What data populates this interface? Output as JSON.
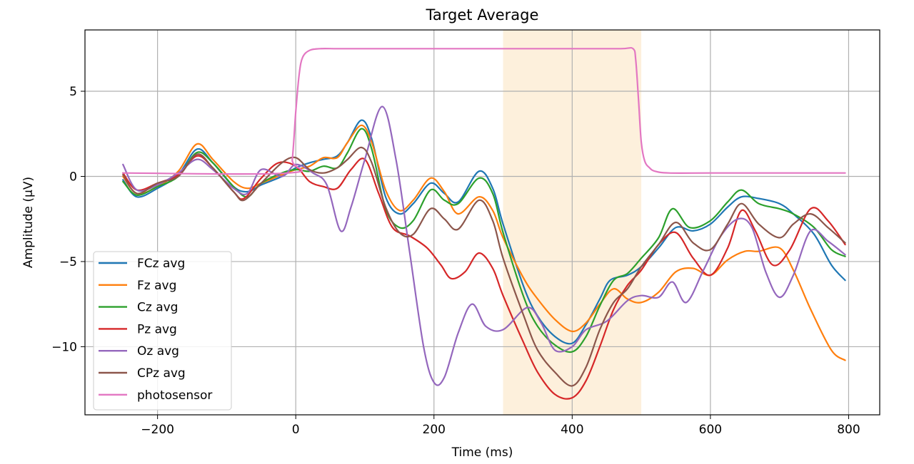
{
  "chart_data": {
    "type": "line",
    "title": "Target Average",
    "xlabel": "Time (ms)",
    "ylabel": "Amplitude (μV)",
    "xlim": [
      -305,
      845
    ],
    "ylim": [
      -14,
      8.6
    ],
    "xticks": [
      -200,
      0,
      200,
      400,
      600,
      800
    ],
    "xtick_labels": [
      "−200",
      "0",
      "200",
      "400",
      "600",
      "800"
    ],
    "yticks": [
      -10,
      -5,
      0,
      5
    ],
    "ytick_labels": [
      "−10",
      "−5",
      "0",
      "5"
    ],
    "grid": true,
    "legend_position": "lower-left",
    "highlight_span": {
      "x_start": 300,
      "x_end": 500,
      "color": "#fdf0dc"
    },
    "series": [
      {
        "name": "FCz avg",
        "color": "#1f77b4",
        "x": [
          -250,
          -230,
          -200,
          -170,
          -143,
          -120,
          -90,
          -70,
          -50,
          -20,
          0,
          20,
          40,
          60,
          75,
          95,
          110,
          130,
          150,
          170,
          195,
          215,
          235,
          265,
          285,
          300,
          330,
          350,
          375,
          400,
          420,
          440,
          455,
          480,
          500,
          525,
          550,
          575,
          600,
          625,
          645,
          670,
          700,
          720,
          750,
          775,
          795
        ],
        "y": [
          -0.2,
          -1.2,
          -0.7,
          0.1,
          1.6,
          0.8,
          -0.6,
          -0.9,
          -0.5,
          0,
          0.5,
          0.8,
          1.0,
          1.2,
          2.0,
          3.3,
          2.2,
          -1.2,
          -2.2,
          -1.6,
          -0.4,
          -1.0,
          -1.5,
          0.3,
          -0.7,
          -2.8,
          -6.5,
          -8.2,
          -9.4,
          -9.8,
          -8.7,
          -7.2,
          -6.1,
          -5.8,
          -5.3,
          -4.2,
          -3.0,
          -3.2,
          -2.8,
          -1.8,
          -1.2,
          -1.3,
          -1.6,
          -2.2,
          -3.4,
          -5.2,
          -6.1
        ]
      },
      {
        "name": "Fz avg",
        "color": "#ff7f0e",
        "x": [
          -250,
          -230,
          -200,
          -170,
          -143,
          -120,
          -90,
          -70,
          -50,
          -20,
          0,
          20,
          40,
          60,
          75,
          95,
          110,
          130,
          150,
          170,
          195,
          215,
          235,
          265,
          285,
          300,
          330,
          350,
          375,
          400,
          420,
          440,
          460,
          480,
          500,
          525,
          550,
          575,
          600,
          625,
          650,
          670,
          700,
          720,
          745,
          775,
          795
        ],
        "y": [
          0.0,
          -1.0,
          -0.6,
          0.3,
          1.9,
          1.0,
          -0.3,
          -0.7,
          -0.4,
          0.1,
          0.4,
          0.6,
          1.1,
          1.1,
          2.0,
          3.0,
          2.0,
          -0.8,
          -2.0,
          -1.4,
          -0.1,
          -0.9,
          -2.2,
          -1.2,
          -2.0,
          -3.6,
          -6.0,
          -7.2,
          -8.4,
          -9.1,
          -8.6,
          -7.5,
          -6.6,
          -7.2,
          -7.4,
          -6.8,
          -5.6,
          -5.4,
          -5.8,
          -4.9,
          -4.4,
          -4.4,
          -4.2,
          -5.5,
          -7.8,
          -10.2,
          -10.8
        ]
      },
      {
        "name": "Cz avg",
        "color": "#2ca02c",
        "x": [
          -250,
          -230,
          -200,
          -170,
          -143,
          -120,
          -90,
          -70,
          -50,
          -20,
          0,
          20,
          40,
          60,
          75,
          95,
          110,
          130,
          150,
          170,
          195,
          215,
          235,
          265,
          285,
          300,
          330,
          350,
          375,
          400,
          420,
          440,
          460,
          480,
          500,
          525,
          545,
          570,
          600,
          625,
          645,
          670,
          700,
          720,
          750,
          775,
          795
        ],
        "y": [
          -0.3,
          -1.1,
          -0.6,
          0,
          1.4,
          0.8,
          -0.6,
          -1.2,
          -0.4,
          0.2,
          0.4,
          0.3,
          0.6,
          0.5,
          1.4,
          2.8,
          1.6,
          -1.9,
          -3.0,
          -2.6,
          -0.8,
          -1.4,
          -1.6,
          -0.1,
          -1.0,
          -3.3,
          -7.1,
          -8.8,
          -9.9,
          -10.3,
          -9.4,
          -7.6,
          -6.1,
          -5.7,
          -4.8,
          -3.6,
          -1.9,
          -3.0,
          -2.6,
          -1.5,
          -0.8,
          -1.6,
          -1.9,
          -2.2,
          -3.0,
          -4.3,
          -4.7
        ]
      },
      {
        "name": "Pz avg",
        "color": "#d62728",
        "x": [
          -250,
          -230,
          -200,
          -170,
          -143,
          -120,
          -90,
          -75,
          -50,
          -25,
          0,
          20,
          40,
          60,
          80,
          100,
          120,
          140,
          165,
          190,
          210,
          225,
          245,
          265,
          285,
          300,
          330,
          350,
          375,
          400,
          420,
          440,
          460,
          480,
          500,
          525,
          550,
          575,
          600,
          625,
          645,
          665,
          690,
          715,
          745,
          770,
          795
        ],
        "y": [
          0.2,
          -0.8,
          -0.4,
          0.1,
          1.2,
          0.5,
          -0.9,
          -1.3,
          -0.1,
          0.8,
          0.6,
          -0.3,
          -0.6,
          -0.7,
          0.4,
          1.0,
          -1.0,
          -3.0,
          -3.5,
          -4.2,
          -5.2,
          -6.0,
          -5.6,
          -4.5,
          -5.4,
          -7.0,
          -9.8,
          -11.5,
          -12.8,
          -13.0,
          -12.0,
          -10.0,
          -7.8,
          -6.4,
          -5.5,
          -4.0,
          -3.3,
          -4.8,
          -5.8,
          -4.2,
          -2.0,
          -3.2,
          -5.2,
          -4.3,
          -1.9,
          -2.6,
          -4.0
        ]
      },
      {
        "name": "Oz avg",
        "color": "#9467bd",
        "x": [
          -250,
          -230,
          -200,
          -170,
          -143,
          -120,
          -90,
          -70,
          -50,
          -20,
          0,
          25,
          45,
          65,
          80,
          100,
          125,
          145,
          165,
          185,
          200,
          215,
          235,
          255,
          275,
          300,
          335,
          355,
          375,
          400,
          420,
          450,
          480,
          500,
          525,
          545,
          565,
          590,
          615,
          640,
          660,
          680,
          700,
          720,
          745,
          770,
          795
        ],
        "y": [
          0.7,
          -0.8,
          -0.5,
          0.2,
          1.0,
          0.4,
          -0.7,
          -1.0,
          0.4,
          0.0,
          0.7,
          0.2,
          -0.5,
          -3.2,
          -1.8,
          1.0,
          4.1,
          1.0,
          -4.5,
          -10.0,
          -12.1,
          -11.8,
          -9.2,
          -7.5,
          -8.8,
          -9.0,
          -7.7,
          -8.6,
          -10.2,
          -10.0,
          -9.0,
          -8.5,
          -7.3,
          -7.0,
          -7.1,
          -6.2,
          -7.4,
          -5.5,
          -3.5,
          -2.5,
          -3.0,
          -5.6,
          -7.1,
          -5.8,
          -3.2,
          -3.8,
          -4.6
        ]
      },
      {
        "name": "CPz avg",
        "color": "#8c564b",
        "x": [
          -250,
          -230,
          -200,
          -170,
          -143,
          -120,
          -90,
          -75,
          -50,
          -20,
          0,
          20,
          40,
          60,
          75,
          95,
          110,
          130,
          150,
          170,
          195,
          215,
          235,
          265,
          285,
          300,
          330,
          350,
          375,
          400,
          420,
          440,
          460,
          480,
          500,
          525,
          550,
          575,
          600,
          625,
          645,
          670,
          700,
          720,
          745,
          770,
          795
        ],
        "y": [
          0.1,
          -1.0,
          -0.4,
          0.0,
          1.3,
          0.5,
          -0.9,
          -1.4,
          -0.4,
          0.8,
          1.1,
          0.4,
          0.2,
          0.5,
          1.0,
          1.7,
          0.8,
          -1.8,
          -3.3,
          -3.4,
          -1.9,
          -2.5,
          -3.1,
          -1.4,
          -2.6,
          -4.8,
          -8.2,
          -10.2,
          -11.5,
          -12.3,
          -11.2,
          -9.0,
          -7.4,
          -6.6,
          -5.3,
          -4.0,
          -2.7,
          -3.9,
          -4.3,
          -2.8,
          -1.6,
          -2.8,
          -3.6,
          -2.8,
          -2.2,
          -3.0,
          -3.9
        ]
      },
      {
        "name": "photosensor",
        "color": "#e377c2",
        "x": [
          -250,
          -10,
          -5,
          0,
          5,
          10,
          20,
          35,
          60,
          100,
          200,
          300,
          400,
          470,
          488,
          492,
          496,
          500,
          505,
          512,
          520,
          540,
          600,
          700,
          795
        ],
        "y": [
          0.2,
          0.2,
          1.0,
          3.8,
          6.0,
          7.0,
          7.4,
          7.5,
          7.5,
          7.5,
          7.5,
          7.5,
          7.5,
          7.5,
          7.5,
          6.8,
          4.5,
          2.0,
          0.9,
          0.5,
          0.3,
          0.2,
          0.2,
          0.2,
          0.2
        ]
      }
    ]
  }
}
